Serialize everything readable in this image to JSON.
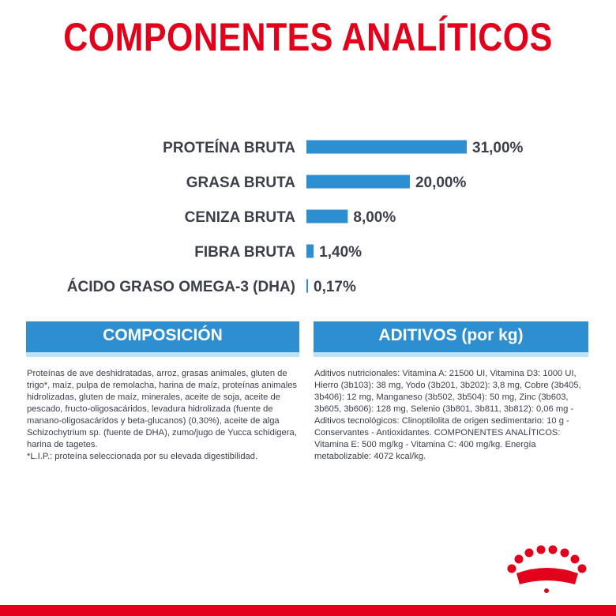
{
  "title": "COMPONENTES ANALÍTICOS",
  "colors": {
    "brand_red": "#e2001a",
    "bar_blue": "#2d8fd0",
    "header_blue": "#2d8fd0",
    "header_underline": "#bfe2f5",
    "text_dark": "#3a3f4a"
  },
  "chart_data": {
    "type": "bar",
    "orientation": "horizontal",
    "title": "COMPONENTES ANALÍTICOS",
    "xlabel": "",
    "ylabel": "",
    "categories": [
      "PROTEÍNA BRUTA",
      "GRASA BRUTA",
      "CENIZA BRUTA",
      "FIBRA BRUTA",
      "ÁCIDO GRASO OMEGA-3 (DHA)"
    ],
    "values": [
      31.0,
      20.0,
      8.0,
      1.4,
      0.17
    ],
    "value_labels": [
      "31,00%",
      "20,00%",
      "8,00%",
      "1,40%",
      "0,17%"
    ],
    "unit": "%",
    "xlim": [
      0,
      31
    ],
    "grid": false,
    "legend": "none"
  },
  "composicion": {
    "header": "COMPOSICIÓN",
    "text": "Proteínas de ave deshidratadas, arroz, grasas animales, gluten de trigo*, maíz, pulpa de remolacha, harina de maíz, proteínas animales hidrolizadas, gluten de maíz, minerales, aceite de soja, aceite de pescado, fructo-oligosacáridos, levadura hidrolizada (fuente de manano-oligosacáridos y beta-glucanos) (0,30%), aceite de alga Schizochytrium sp. (fuente de DHA), zumo/jugo de Yucca schidigera, harina de tagetes.\n*L.I.P.: proteína seleccionada por su elevada digestibilidad."
  },
  "aditivos": {
    "header": "ADITIVOS (por kg)",
    "text": "Aditivos nutricionales: Vitamina A: 21500 UI, Vitamina D3: 1000 UI, Hierro (3b103): 38 mg, Yodo (3b201, 3b202): 3,8 mg, Cobre (3b405, 3b406): 12 mg, Manganeso (3b502, 3b504): 50 mg, Zinc (3b603, 3b605, 3b606): 128 mg, Selenio (3b801, 3b811, 3b812): 0,06 mg - Aditivos tecnológicos: Clinoptilolita de origen sedimentario: 10 g - Conservantes - Antioxidantes. COMPONENTES ANALÍTICOS: Vitamina E: 500 mg/kg - Vitamina C: 400 mg/kg. Energía metabolizable: 4072 kcal/kg."
  },
  "logo": {
    "icon": "royal-canin-crown-logo"
  }
}
